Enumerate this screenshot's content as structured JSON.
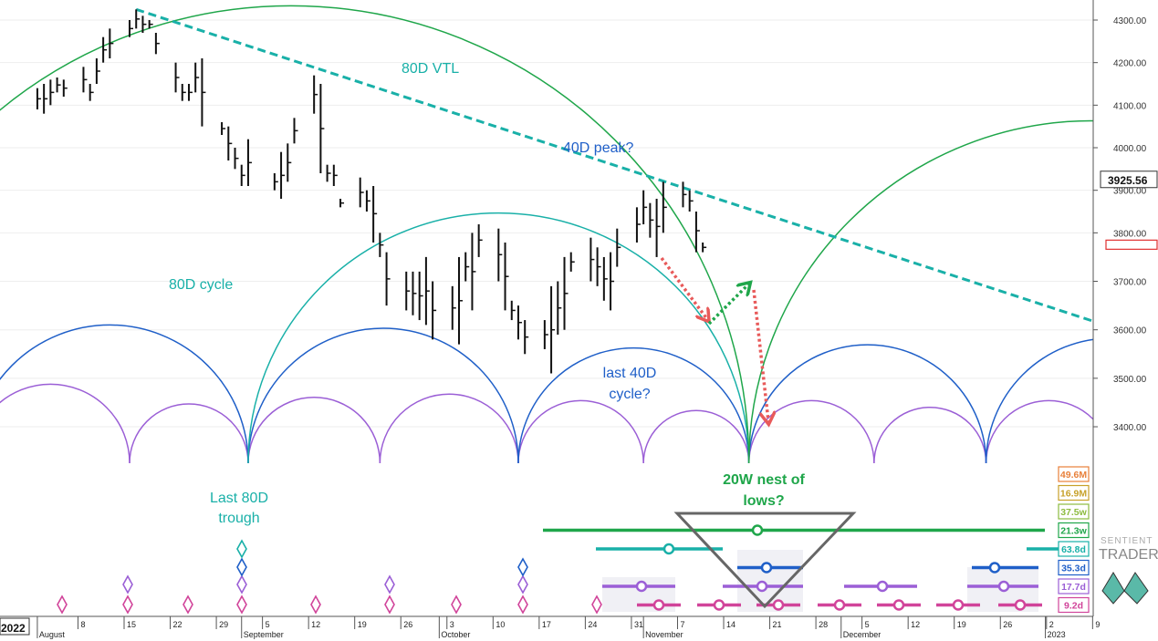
{
  "chart_data": {
    "type": "ohlc",
    "instrument_price_label": "3925.56",
    "price_axis": {
      "ticks": [
        "4300.00",
        "4200.00",
        "4100.00",
        "4000.00",
        "3900.00",
        "3800.00",
        "3700.00",
        "3600.00",
        "3500.00",
        "3400.00"
      ],
      "tick_values": [
        4300,
        4200,
        4100,
        4000,
        3900,
        3800,
        3700,
        3600,
        3500,
        3400
      ],
      "visible_range": [
        3300,
        4340
      ]
    },
    "date_axis": {
      "months": [
        "August",
        "September",
        "October",
        "November",
        "December",
        "2023"
      ],
      "day_ticks": [
        "8",
        "15",
        "22",
        "29",
        "5",
        "12",
        "19",
        "26",
        "3",
        "10",
        "17",
        "24",
        "31",
        "7",
        "14",
        "21",
        "28",
        "5",
        "12",
        "19",
        "26",
        "2",
        "9"
      ],
      "year_label": "2022"
    },
    "bars": [
      {
        "x": "2022-08-01",
        "h": 4140,
        "l": 4090
      },
      {
        "x": "2022-08-02",
        "h": 4150,
        "l": 4080
      },
      {
        "x": "2022-08-03",
        "h": 4160,
        "l": 4100
      },
      {
        "x": "2022-08-04",
        "h": 4165,
        "l": 4130
      },
      {
        "x": "2022-08-05",
        "h": 4160,
        "l": 4120
      },
      {
        "x": "2022-08-08",
        "h": 4190,
        "l": 4130
      },
      {
        "x": "2022-08-09",
        "h": 4150,
        "l": 4110
      },
      {
        "x": "2022-08-10",
        "h": 4210,
        "l": 4150
      },
      {
        "x": "2022-08-11",
        "h": 4260,
        "l": 4200
      },
      {
        "x": "2022-08-12",
        "h": 4280,
        "l": 4210
      },
      {
        "x": "2022-08-15",
        "h": 4300,
        "l": 4260
      },
      {
        "x": "2022-08-16",
        "h": 4325,
        "l": 4280
      },
      {
        "x": "2022-08-17",
        "h": 4310,
        "l": 4270
      },
      {
        "x": "2022-08-18",
        "h": 4300,
        "l": 4280
      },
      {
        "x": "2022-08-19",
        "h": 4270,
        "l": 4220
      },
      {
        "x": "2022-08-22",
        "h": 4200,
        "l": 4130
      },
      {
        "x": "2022-08-23",
        "h": 4150,
        "l": 4110
      },
      {
        "x": "2022-08-24",
        "h": 4150,
        "l": 4110
      },
      {
        "x": "2022-08-25",
        "h": 4200,
        "l": 4130
      },
      {
        "x": "2022-08-26",
        "h": 4210,
        "l": 4050
      },
      {
        "x": "2022-08-29",
        "h": 4060,
        "l": 4030
      },
      {
        "x": "2022-08-30",
        "h": 4050,
        "l": 3970
      },
      {
        "x": "2022-08-31",
        "h": 4000,
        "l": 3950
      },
      {
        "x": "2022-09-01",
        "h": 3960,
        "l": 3910
      },
      {
        "x": "2022-09-02",
        "h": 4020,
        "l": 3910
      },
      {
        "x": "2022-09-06",
        "h": 3940,
        "l": 3900
      },
      {
        "x": "2022-09-07",
        "h": 3990,
        "l": 3880
      },
      {
        "x": "2022-09-08",
        "h": 4010,
        "l": 3920
      },
      {
        "x": "2022-09-09",
        "h": 4070,
        "l": 4010
      },
      {
        "x": "2022-09-12",
        "h": 4170,
        "l": 4080
      },
      {
        "x": "2022-09-13",
        "h": 4150,
        "l": 3940
      },
      {
        "x": "2022-09-14",
        "h": 3960,
        "l": 3920
      },
      {
        "x": "2022-09-15",
        "h": 3960,
        "l": 3910
      },
      {
        "x": "2022-09-16",
        "h": 3880,
        "l": 3860
      },
      {
        "x": "2022-09-19",
        "h": 3930,
        "l": 3860
      },
      {
        "x": "2022-09-20",
        "h": 3900,
        "l": 3850
      },
      {
        "x": "2022-09-21",
        "h": 3910,
        "l": 3780
      },
      {
        "x": "2022-09-22",
        "h": 3800,
        "l": 3750
      },
      {
        "x": "2022-09-23",
        "h": 3760,
        "l": 3650
      },
      {
        "x": "2022-09-26",
        "h": 3720,
        "l": 3640
      },
      {
        "x": "2022-09-27",
        "h": 3720,
        "l": 3630
      },
      {
        "x": "2022-09-28",
        "h": 3720,
        "l": 3620
      },
      {
        "x": "2022-09-29",
        "h": 3750,
        "l": 3610
      },
      {
        "x": "2022-09-30",
        "h": 3700,
        "l": 3580
      },
      {
        "x": "2022-10-03",
        "h": 3690,
        "l": 3600
      },
      {
        "x": "2022-10-04",
        "h": 3750,
        "l": 3570
      },
      {
        "x": "2022-10-05",
        "h": 3760,
        "l": 3700
      },
      {
        "x": "2022-10-06",
        "h": 3800,
        "l": 3640
      },
      {
        "x": "2022-10-07",
        "h": 3820,
        "l": 3750
      },
      {
        "x": "2022-10-10",
        "h": 3810,
        "l": 3700
      },
      {
        "x": "2022-10-11",
        "h": 3780,
        "l": 3640
      },
      {
        "x": "2022-10-12",
        "h": 3660,
        "l": 3620
      },
      {
        "x": "2022-10-13",
        "h": 3650,
        "l": 3580
      },
      {
        "x": "2022-10-14",
        "h": 3620,
        "l": 3550
      },
      {
        "x": "2022-10-17",
        "h": 3620,
        "l": 3560
      },
      {
        "x": "2022-10-18",
        "h": 3690,
        "l": 3510
      },
      {
        "x": "2022-10-19",
        "h": 3700,
        "l": 3590
      },
      {
        "x": "2022-10-20",
        "h": 3750,
        "l": 3600
      },
      {
        "x": "2022-10-21",
        "h": 3760,
        "l": 3720
      },
      {
        "x": "2022-10-24",
        "h": 3790,
        "l": 3700
      },
      {
        "x": "2022-10-25",
        "h": 3770,
        "l": 3690
      },
      {
        "x": "2022-10-26",
        "h": 3750,
        "l": 3660
      },
      {
        "x": "2022-10-27",
        "h": 3760,
        "l": 3640
      },
      {
        "x": "2022-10-28",
        "h": 3810,
        "l": 3730
      },
      {
        "x": "2022-10-31",
        "h": 3860,
        "l": 3780
      },
      {
        "x": "2022-11-01",
        "h": 3900,
        "l": 3820
      },
      {
        "x": "2022-11-02",
        "h": 3870,
        "l": 3790
      },
      {
        "x": "2022-11-03",
        "h": 3880,
        "l": 3750
      },
      {
        "x": "2022-11-04",
        "h": 3920,
        "l": 3800
      },
      {
        "x": "2022-11-07",
        "h": 3920,
        "l": 3860
      },
      {
        "x": "2022-11-08",
        "h": 3900,
        "l": 3850
      },
      {
        "x": "2022-11-09",
        "h": 3850,
        "l": 3760
      },
      {
        "x": "2022-11-10",
        "h": 3780,
        "l": 3760
      }
    ],
    "trendline": {
      "label": "80D VTL",
      "from": {
        "x": "2022-08-16",
        "y": 4325
      },
      "to": {
        "x": "2023-01-10",
        "y": 3610
      }
    },
    "annotations": [
      "80D VTL",
      "40D peak?",
      "80D cycle",
      "last 40D cycle?",
      "Last 80D trough",
      "20W nest of lows?"
    ],
    "cycle_troughs": {
      "purple": [
        "2022-07-22",
        "2022-08-15",
        "2022-09-02",
        "2022-09-22",
        "2022-10-13",
        "2022-11-01",
        "2022-11-17",
        "2022-12-06",
        "2022-12-23",
        "2023-01-11"
      ],
      "blue": [
        "2022-07-22",
        "2022-09-02",
        "2022-10-13",
        "2022-11-17",
        "2022-12-23",
        "2023-01-30"
      ],
      "teal": [
        "2022-09-02",
        "2022-11-17"
      ],
      "green": [
        "2022-07-01",
        "2022-11-17",
        "2023-03-01"
      ]
    },
    "cycle_periods": [
      {
        "label": "49.6M",
        "color": "#e8803a"
      },
      {
        "label": "16.9M",
        "color": "#c7a12a"
      },
      {
        "label": "37.5w",
        "color": "#8dbb3f"
      },
      {
        "label": "21.3w",
        "color": "#1fa64a"
      },
      {
        "label": "63.8d",
        "color": "#19b0a8"
      },
      {
        "label": "35.3d",
        "color": "#1f5fc8"
      },
      {
        "label": "17.7d",
        "color": "#9b5fd6"
      },
      {
        "label": "9.2d",
        "color": "#d1449a"
      }
    ]
  },
  "brand": {
    "line1": "SENTIENT",
    "line2": "TRADER"
  }
}
